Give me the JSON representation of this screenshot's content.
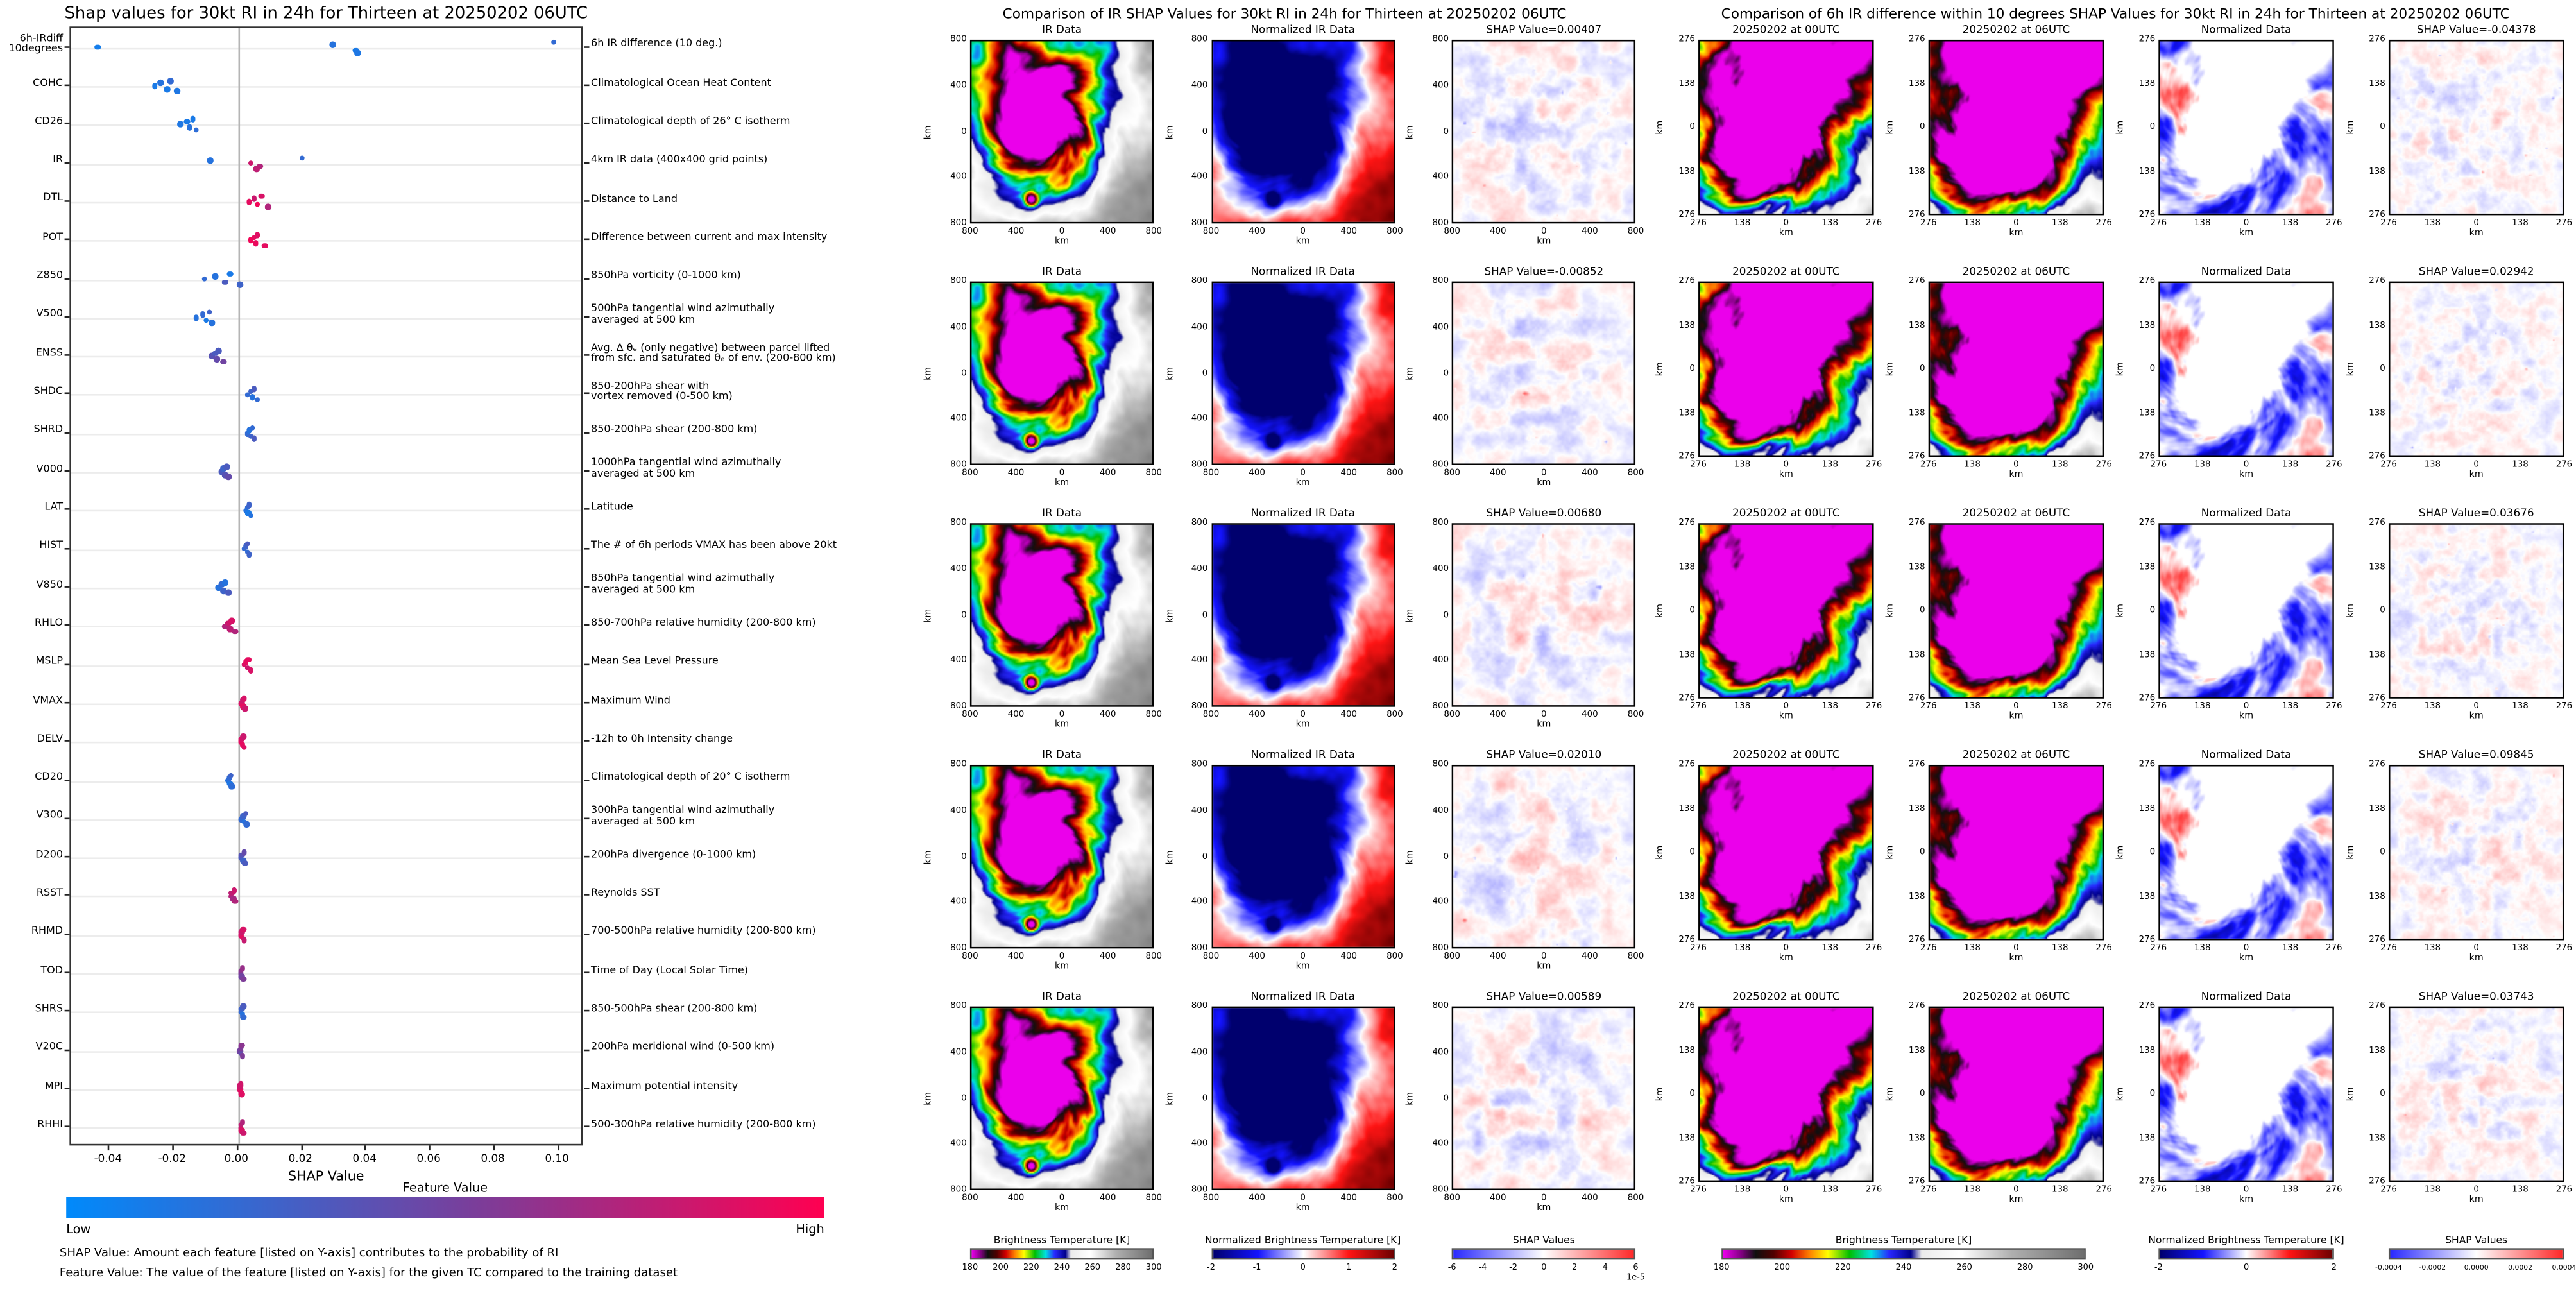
{
  "figure": {
    "background": "#ffffff",
    "shap_colormap": {
      "low": "#008afb",
      "mid": "#7d3c98",
      "high": "#ff0051"
    }
  },
  "chart_data": [
    {
      "type": "scatter",
      "subtype": "shap-beeswarm-summary",
      "title": "Shap values for 30kt RI in 24h for Thirteen at 20250202 06UTC",
      "xlabel": "SHAP Value",
      "xlim": [
        -0.052,
        0.108
      ],
      "x_ticks": [
        "-0.04",
        "-0.02",
        "0.00",
        "0.02",
        "0.04",
        "0.06",
        "0.08",
        "0.10"
      ],
      "x_tick_vals": [
        -0.04,
        -0.02,
        0.0,
        0.02,
        0.04,
        0.06,
        0.08,
        0.1
      ],
      "colorbar": {
        "title": "Feature Value",
        "low_label": "Low",
        "high_label": "High"
      },
      "footnotes": [
        "SHAP Value: Amount each feature [listed on Y-axis] contributes to the probability of RI",
        "Feature Value: The value of the feature [listed on Y-axis] for the given TC compared to the training dataset"
      ],
      "features": [
        {
          "label": "6h-IRdiff",
          "label2": "10degrees",
          "desc": [
            "6h IR difference (10 deg.)"
          ],
          "shap": [
            -0.04378,
            0.02942,
            0.03676,
            0.09845,
            0.03743
          ],
          "color": [
            0.08,
            0.15,
            0.1,
            0.2,
            0.12
          ]
        },
        {
          "label": "COHC",
          "desc": [
            "Climatological Ocean Heat Content"
          ],
          "shap": [
            -0.026,
            -0.024,
            -0.022,
            -0.021,
            -0.019
          ],
          "color": [
            0.1,
            0.15,
            0.1,
            0.2,
            0.12
          ]
        },
        {
          "label": "CD26",
          "desc": [
            "Climatological depth of 26° C isotherm"
          ],
          "shap": [
            -0.018,
            -0.016,
            -0.015,
            -0.014,
            -0.013
          ],
          "color": [
            0.12,
            0.1,
            0.15,
            0.1,
            0.18
          ]
        },
        {
          "label": "IR",
          "desc": [
            "4km IR data (400x400 grid points)"
          ],
          "shap": [
            0.00407,
            -0.00852,
            0.0068,
            0.0201,
            0.00589
          ],
          "color": [
            0.8,
            0.15,
            0.7,
            0.2,
            0.75
          ]
        },
        {
          "label": "DTL",
          "desc": [
            "Distance to Land"
          ],
          "shap": [
            0.0035,
            0.005,
            0.006,
            0.0075,
            0.0095
          ],
          "color": [
            0.9,
            0.8,
            0.95,
            0.85,
            0.7
          ]
        },
        {
          "label": "POT",
          "desc": [
            "Difference between current and max intensity"
          ],
          "shap": [
            0.004,
            0.005,
            0.0055,
            0.006,
            0.0085
          ],
          "color": [
            0.95,
            0.9,
            0.92,
            0.88,
            0.9
          ]
        },
        {
          "label": "Z850",
          "desc": [
            "850hPa vorticity (0-1000 km)"
          ],
          "shap": [
            -0.0105,
            -0.007,
            -0.004,
            -0.0025,
            0.0005
          ],
          "color": [
            0.2,
            0.15,
            0.3,
            0.1,
            0.25
          ]
        },
        {
          "label": "V500",
          "desc": [
            "500hPa tangential wind azimuthally",
            "averaged at 500 km"
          ],
          "shap": [
            -0.013,
            -0.011,
            -0.01,
            -0.009,
            -0.008
          ],
          "color": [
            0.15,
            0.2,
            0.1,
            0.25,
            0.15
          ]
        },
        {
          "label": "ENSS",
          "desc": [
            "Avg. Δ θₑ (only negative) between parcel lifted",
            "from sfc. and saturated θₑ of env. (200-800 km)"
          ],
          "shap": [
            -0.008,
            -0.007,
            -0.0065,
            -0.006,
            -0.0045
          ],
          "color": [
            0.35,
            0.3,
            0.4,
            0.3,
            0.45
          ]
        },
        {
          "label": "SHDC",
          "desc": [
            "850-200hPa shear with",
            "vortex removed (0-500 km)"
          ],
          "shap": [
            0.003,
            0.004,
            0.0045,
            0.005,
            0.006
          ],
          "color": [
            0.2,
            0.25,
            0.15,
            0.3,
            0.2
          ]
        },
        {
          "label": "SHRD",
          "desc": [
            "850-200hPa shear (200-800 km)"
          ],
          "shap": [
            0.003,
            0.0035,
            0.004,
            0.0045,
            0.005
          ],
          "color": [
            0.2,
            0.15,
            0.25,
            0.2,
            0.3
          ]
        },
        {
          "label": "V000",
          "desc": [
            "1000hPa tangential wind azimuthally",
            "averaged at 500 km"
          ],
          "shap": [
            -0.005,
            -0.0045,
            -0.004,
            -0.0035,
            -0.003
          ],
          "color": [
            0.3,
            0.25,
            0.35,
            0.3,
            0.4
          ]
        },
        {
          "label": "LAT",
          "desc": [
            "Latitude"
          ],
          "shap": [
            0.0025,
            0.003,
            0.0032,
            0.0035,
            0.004
          ],
          "color": [
            0.15,
            0.2,
            0.1,
            0.25,
            0.15
          ]
        },
        {
          "label": "HIST",
          "desc": [
            "The # of 6h periods VMAX has been above 20kt"
          ],
          "shap": [
            0.002,
            0.0025,
            0.003,
            0.003,
            0.0035
          ],
          "color": [
            0.2,
            0.25,
            0.2,
            0.3,
            0.25
          ]
        },
        {
          "label": "V850",
          "desc": [
            "850hPa tangential wind azimuthally",
            "averaged at 500 km"
          ],
          "shap": [
            -0.006,
            -0.005,
            -0.0045,
            -0.004,
            -0.003
          ],
          "color": [
            0.15,
            0.2,
            0.25,
            0.15,
            0.3
          ]
        },
        {
          "label": "RHLO",
          "desc": [
            "850-700hPa relative humidity (200-800 km)"
          ],
          "shap": [
            -0.004,
            -0.003,
            -0.0025,
            -0.002,
            -0.001
          ],
          "color": [
            0.7,
            0.8,
            0.75,
            0.85,
            0.7
          ]
        },
        {
          "label": "MSLP",
          "desc": [
            "Mean Sea Level Pressure"
          ],
          "shap": [
            0.002,
            0.0025,
            0.003,
            0.0032,
            0.004
          ],
          "color": [
            0.85,
            0.9,
            0.8,
            0.9,
            0.85
          ]
        },
        {
          "label": "VMAX",
          "desc": [
            "Maximum Wind"
          ],
          "shap": [
            0.0012,
            0.0015,
            0.0018,
            0.002,
            0.0022
          ],
          "color": [
            0.85,
            0.8,
            0.9,
            0.85,
            0.8
          ]
        },
        {
          "label": "DELV",
          "desc": [
            "-12h to 0h Intensity change"
          ],
          "shap": [
            0.001,
            0.0013,
            0.0015,
            0.0018,
            0.002
          ],
          "color": [
            0.9,
            0.85,
            0.9,
            0.8,
            0.88
          ]
        },
        {
          "label": "CD20",
          "desc": [
            "Climatological depth of 20° C isotherm"
          ],
          "shap": [
            -0.0032,
            -0.0028,
            -0.0025,
            -0.0022,
            -0.002
          ],
          "color": [
            0.15,
            0.2,
            0.12,
            0.25,
            0.18
          ]
        },
        {
          "label": "V300",
          "desc": [
            "300hPa tangential wind azimuthally",
            "averaged at 500 km"
          ],
          "shap": [
            0.0012,
            0.0016,
            0.002,
            0.0024,
            0.0028
          ],
          "color": [
            0.2,
            0.25,
            0.15,
            0.3,
            0.2
          ]
        },
        {
          "label": "D200",
          "desc": [
            "200hPa divergence (0-1000 km)"
          ],
          "shap": [
            0.001,
            0.0013,
            0.0016,
            0.0019,
            0.0022
          ],
          "color": [
            0.3,
            0.35,
            0.25,
            0.4,
            0.3
          ]
        },
        {
          "label": "RSST",
          "desc": [
            "Reynolds SST"
          ],
          "shap": [
            -0.0022,
            -0.0018,
            -0.0015,
            -0.0012,
            -0.001
          ],
          "color": [
            0.7,
            0.75,
            0.65,
            0.8,
            0.7
          ]
        },
        {
          "label": "RHMD",
          "desc": [
            "700-500hPa relative humidity (200-800 km)"
          ],
          "shap": [
            0.0008,
            0.0011,
            0.0014,
            0.0016,
            0.0019
          ],
          "color": [
            0.85,
            0.8,
            0.9,
            0.85,
            0.78
          ]
        },
        {
          "label": "TOD",
          "desc": [
            "Time of Day (Local Solar Time)"
          ],
          "shap": [
            0.0008,
            0.001,
            0.0013,
            0.0015,
            0.0017
          ],
          "color": [
            0.5,
            0.55,
            0.45,
            0.6,
            0.5
          ]
        },
        {
          "label": "SHRS",
          "desc": [
            "850-500hPa shear (200-800 km)"
          ],
          "shap": [
            0.001,
            0.0012,
            0.0014,
            0.0016,
            0.0018
          ],
          "color": [
            0.2,
            0.25,
            0.15,
            0.3,
            0.2
          ]
        },
        {
          "label": "V20C",
          "desc": [
            "200hPa meridional wind (0-500 km)"
          ],
          "shap": [
            0.0005,
            0.0008,
            0.001,
            0.0012,
            0.0014
          ],
          "color": [
            0.45,
            0.5,
            0.4,
            0.55,
            0.5
          ]
        },
        {
          "label": "MPI",
          "desc": [
            "Maximum potential intensity"
          ],
          "shap": [
            0.0005,
            0.0007,
            0.0009,
            0.001,
            0.0012
          ],
          "color": [
            0.85,
            0.8,
            0.9,
            0.82,
            0.88
          ]
        },
        {
          "label": "RHHI",
          "desc": [
            "500-300hPa relative humidity (200-800 km)"
          ],
          "shap": [
            0.0008,
            0.001,
            0.0012,
            0.0015,
            0.0018
          ],
          "color": [
            0.8,
            0.75,
            0.85,
            0.7,
            0.8
          ]
        }
      ]
    },
    {
      "type": "heatmap",
      "subtype": "ir-shap-map-grid",
      "title": "Comparison of IR SHAP Values for 30kt RI in 24h for Thirteen at 20250202 06UTC",
      "shap_values": [
        0.00407,
        -0.00852,
        0.0068,
        0.0201,
        0.00589
      ],
      "rows": [
        {
          "titles": [
            "IR Data",
            "Normalized IR Data",
            "SHAP Value=0.00407"
          ]
        },
        {
          "titles": [
            "IR Data",
            "Normalized IR Data",
            "SHAP Value=-0.00852"
          ]
        },
        {
          "titles": [
            "IR Data",
            "Normalized IR Data",
            "SHAP Value=0.00680"
          ]
        },
        {
          "titles": [
            "IR Data",
            "Normalized IR Data",
            "SHAP Value=0.02010"
          ]
        },
        {
          "titles": [
            "IR Data",
            "Normalized IR Data",
            "SHAP Value=0.00589"
          ]
        }
      ],
      "axis_ticks": [
        "800",
        "400",
        "0",
        "400",
        "800"
      ],
      "axis_unit": "km",
      "colorbars": [
        {
          "label": "Brightness Temperature [K]",
          "ticks": [
            "180",
            "200",
            "220",
            "240",
            "260",
            "280",
            "300"
          ],
          "style": "ir"
        },
        {
          "label": "Normalized Brightness Temperature [K]",
          "ticks": [
            "-2",
            "-1",
            "0",
            "1",
            "2"
          ],
          "style": "seismic"
        },
        {
          "label": "SHAP Values",
          "ticks": [
            "-6",
            "-4",
            "-2",
            "0",
            "2",
            "4",
            "6"
          ],
          "exp": "1e-5",
          "style": "bwr"
        }
      ]
    },
    {
      "type": "heatmap",
      "subtype": "irdiff-shap-map-grid",
      "title": "Comparison of 6h IR difference within 10 degrees SHAP Values for 30kt RI in 24h for Thirteen at 20250202 06UTC",
      "shap_values": [
        -0.04378,
        0.02942,
        0.03676,
        0.09845,
        0.03743
      ],
      "rows": [
        {
          "titles": [
            "20250202 at 00UTC",
            "20250202 at 06UTC",
            "Normalized Data",
            "SHAP Value=-0.04378"
          ]
        },
        {
          "titles": [
            "20250202 at 00UTC",
            "20250202 at 06UTC",
            "Normalized Data",
            "SHAP Value=0.02942"
          ]
        },
        {
          "titles": [
            "20250202 at 00UTC",
            "20250202 at 06UTC",
            "Normalized Data",
            "SHAP Value=0.03676"
          ]
        },
        {
          "titles": [
            "20250202 at 00UTC",
            "20250202 at 06UTC",
            "Normalized Data",
            "SHAP Value=0.09845"
          ]
        },
        {
          "titles": [
            "20250202 at 00UTC",
            "20250202 at 06UTC",
            "Normalized Data",
            "SHAP Value=0.03743"
          ]
        }
      ],
      "axis_ticks": [
        "276",
        "138",
        "0",
        "138",
        "276"
      ],
      "axis_unit": "km",
      "colorbars": [
        {
          "label": "Brightness Temperature [K]",
          "ticks": [
            "180",
            "200",
            "220",
            "240",
            "260",
            "280",
            "300"
          ],
          "style": "ir"
        },
        {
          "label": "Normalized Brightness Temperature [K]",
          "ticks": [
            "-2",
            "0",
            "2"
          ],
          "style": "seismic"
        },
        {
          "label": "SHAP Values",
          "ticks": [
            "-0.0004",
            "-0.0002",
            "0.0000",
            "0.0002",
            "0.0004"
          ],
          "style": "bwr"
        }
      ]
    }
  ]
}
